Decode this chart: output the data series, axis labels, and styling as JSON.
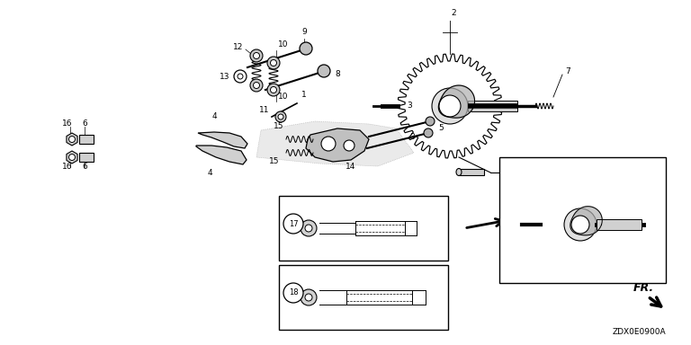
{
  "bg_color": "#ffffff",
  "fig_width": 7.68,
  "fig_height": 3.84,
  "dpi": 100,
  "footer_code": "ZDX0E0900A",
  "fr_label": "FR."
}
